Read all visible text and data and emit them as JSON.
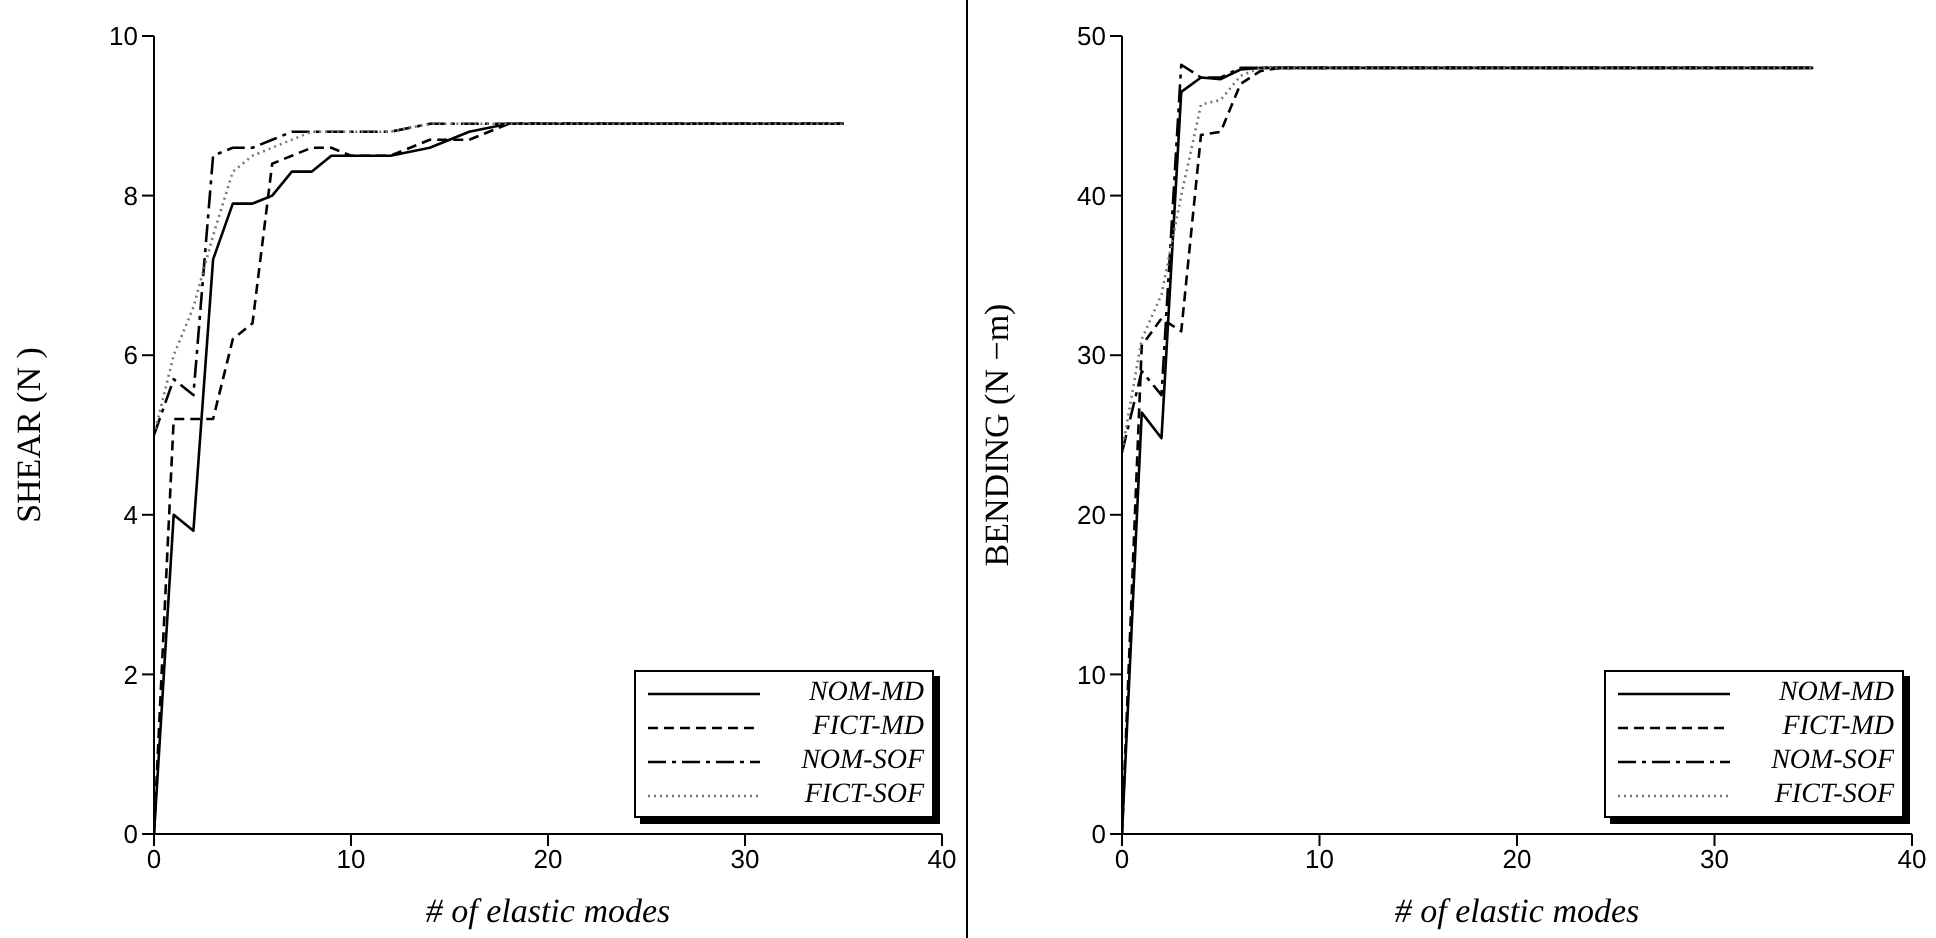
{
  "chart_data": [
    {
      "type": "line",
      "xlabel": "# of elastic modes",
      "ylabel": "SHEAR (N )",
      "x": [
        0,
        1,
        2,
        3,
        4,
        5,
        6,
        7,
        8,
        9,
        10,
        12,
        14,
        16,
        18,
        20,
        35
      ],
      "xlim": [
        0,
        40
      ],
      "xticks": [
        0,
        10,
        20,
        30,
        40
      ],
      "ylim": [
        0,
        10
      ],
      "yticks": [
        0,
        2,
        4,
        6,
        8,
        10
      ],
      "legend": "bottom right",
      "series": [
        {
          "name": "NOM-MD",
          "color": "#000000",
          "line_style": "solid",
          "values": [
            0,
            4.0,
            3.8,
            7.2,
            7.9,
            7.9,
            8.0,
            8.3,
            8.3,
            8.5,
            8.5,
            8.5,
            8.6,
            8.8,
            8.9,
            8.9,
            8.9
          ]
        },
        {
          "name": "FICT-MD",
          "color": "#000000",
          "line_style": "dashed",
          "values": [
            0,
            5.2,
            5.2,
            5.2,
            6.2,
            6.4,
            8.4,
            8.5,
            8.6,
            8.6,
            8.5,
            8.5,
            8.7,
            8.7,
            8.9,
            8.9,
            8.9
          ]
        },
        {
          "name": "NOM-SOF",
          "color": "#000000",
          "line_style": "dashdot",
          "values": [
            5.0,
            5.7,
            5.5,
            8.5,
            8.6,
            8.6,
            8.7,
            8.8,
            8.8,
            8.8,
            8.8,
            8.8,
            8.9,
            8.9,
            8.9,
            8.9,
            8.9
          ]
        },
        {
          "name": "FICT-SOF",
          "color": "#777777",
          "line_style": "dotted",
          "values": [
            5.0,
            6.0,
            6.6,
            7.5,
            8.3,
            8.5,
            8.6,
            8.7,
            8.8,
            8.8,
            8.8,
            8.8,
            8.9,
            8.9,
            8.9,
            8.9,
            8.9
          ]
        }
      ]
    },
    {
      "type": "line",
      "xlabel": "# of elastic modes",
      "ylabel": "BENDING (N −m)",
      "x": [
        0,
        1,
        2,
        3,
        4,
        5,
        6,
        7,
        8,
        9,
        10,
        12,
        14,
        16,
        18,
        20,
        35
      ],
      "xlim": [
        0,
        40
      ],
      "xticks": [
        0,
        10,
        20,
        30,
        40
      ],
      "ylim": [
        0,
        50
      ],
      "yticks": [
        0,
        10,
        20,
        30,
        40,
        50
      ],
      "legend": "bottom right",
      "series": [
        {
          "name": "NOM-MD",
          "color": "#000000",
          "line_style": "solid",
          "values": [
            0,
            26.4,
            24.8,
            46.5,
            47.4,
            47.3,
            47.9,
            48,
            48,
            48,
            48,
            48,
            48,
            48,
            48,
            48,
            48
          ]
        },
        {
          "name": "FICT-MD",
          "color": "#000000",
          "line_style": "dashed",
          "values": [
            0,
            30.6,
            32.3,
            31.5,
            43.8,
            44,
            47,
            47.8,
            48,
            48,
            48,
            48,
            48,
            48,
            48,
            48,
            48
          ]
        },
        {
          "name": "NOM-SOF",
          "color": "#000000",
          "line_style": "dashdot",
          "values": [
            23.9,
            29,
            27.5,
            48.2,
            47.4,
            47.4,
            48,
            48,
            48,
            48,
            48,
            48,
            48,
            48,
            48,
            48,
            48
          ]
        },
        {
          "name": "FICT-SOF",
          "color": "#777777",
          "line_style": "dotted",
          "values": [
            24,
            31,
            33.8,
            40,
            45.7,
            46,
            47.5,
            48,
            48,
            48,
            48,
            48,
            48,
            48,
            48,
            48,
            48
          ]
        }
      ]
    }
  ]
}
